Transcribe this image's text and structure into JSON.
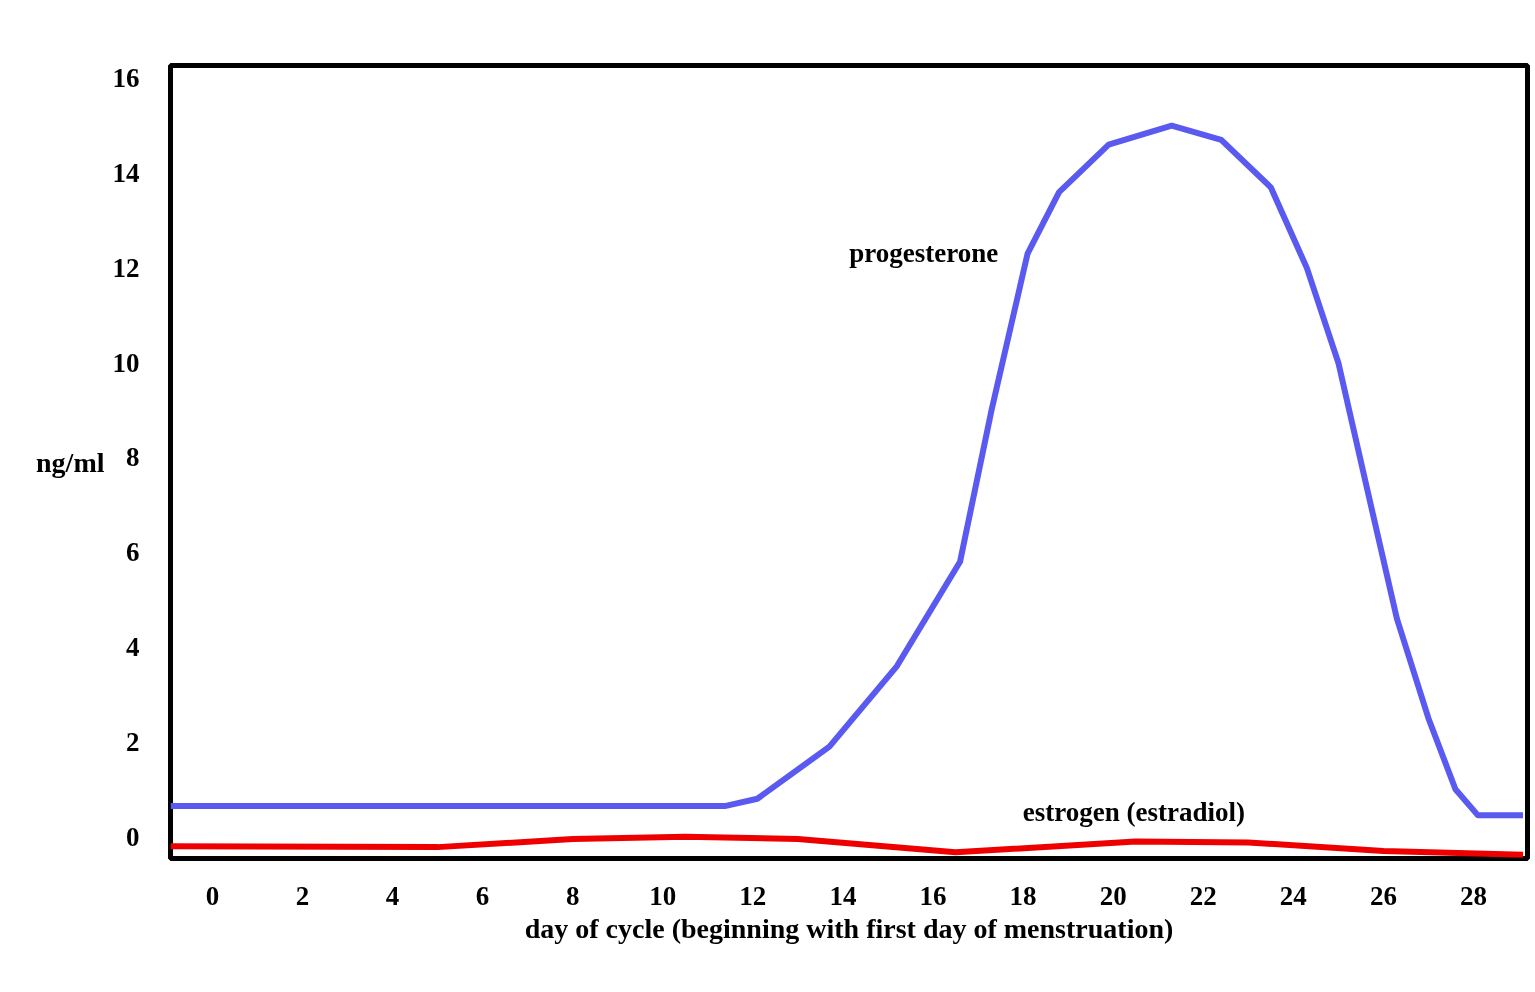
{
  "chart_data": {
    "type": "line",
    "xlabel": "day of cycle (beginning with first day of menstruation)",
    "ylabel": "ng/ml",
    "xlim": [
      -0.93,
      29.2
    ],
    "ylim": [
      -0.46,
      16.27
    ],
    "xticks": [
      0,
      2,
      4,
      6,
      8,
      10,
      12,
      14,
      16,
      18,
      20,
      22,
      24,
      26,
      28
    ],
    "yticks": [
      0,
      2,
      4,
      6,
      8,
      10,
      12,
      14,
      16
    ],
    "grid": false,
    "marker": "none",
    "line_style": "solid",
    "series": [
      {
        "name": "progesterone",
        "color": "#5a5af0",
        "x": [
          -0.93,
          11.4,
          12.1,
          13.7,
          15.2,
          16.6,
          17.3,
          18.1,
          18.8,
          19.9,
          21.3,
          22.4,
          23.5,
          24.3,
          25.0,
          25.6,
          26.3,
          27.0,
          27.6,
          28.1,
          29.1
        ],
        "values": [
          0.65,
          0.65,
          0.8,
          1.9,
          3.6,
          5.8,
          9.0,
          12.3,
          13.6,
          14.6,
          15.0,
          14.7,
          13.7,
          12.0,
          10.0,
          7.5,
          4.6,
          2.5,
          1.0,
          0.45,
          0.45
        ]
      },
      {
        "name": "estrogen (estradiol)",
        "color": "#ee0000",
        "x": [
          -0.93,
          5,
          8,
          10.5,
          13,
          16.5,
          20.5,
          23,
          26,
          29.1
        ],
        "values": [
          -0.2,
          -0.22,
          -0.05,
          0,
          -0.05,
          -0.33,
          -0.1,
          -0.12,
          -0.3,
          -0.38
        ]
      }
    ]
  }
}
